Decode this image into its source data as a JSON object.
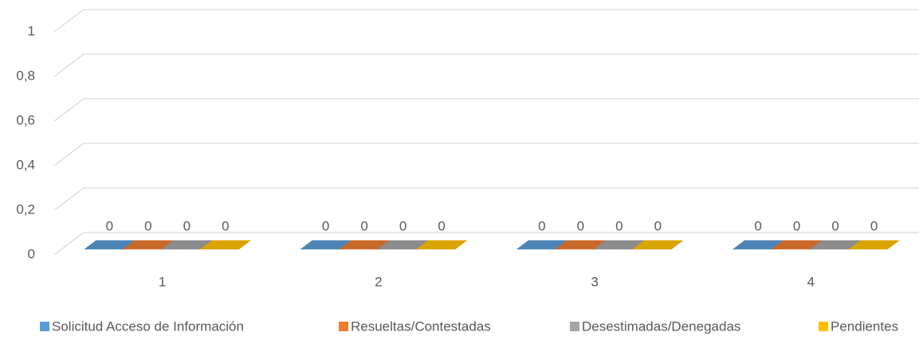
{
  "chart_data": {
    "type": "bar3d",
    "categories": [
      "1",
      "2",
      "3",
      "4"
    ],
    "series": [
      {
        "name": "Solicitud Acceso de Información",
        "color": "#5b9bd5",
        "values": [
          0,
          0,
          0,
          0
        ]
      },
      {
        "name": "Resueltas/Contestadas",
        "color": "#ed7d31",
        "values": [
          0,
          0,
          0,
          0
        ]
      },
      {
        "name": "Desestimadas/Denegadas",
        "color": "#a5a5a5",
        "values": [
          0,
          0,
          0,
          0
        ]
      },
      {
        "name": "Pendientes",
        "color": "#ffc000",
        "values": [
          0,
          0,
          0,
          0
        ]
      }
    ],
    "ylim": [
      0,
      1
    ],
    "yticks": [
      0,
      {
        "value": 0.2,
        "label": "0,2"
      },
      {
        "value": 0.4,
        "label": "0,4"
      },
      {
        "value": 0.6,
        "label": "0,6"
      },
      {
        "value": 0.8,
        "label": "0,8"
      },
      1
    ],
    "grid": true,
    "legend": "bottom"
  }
}
